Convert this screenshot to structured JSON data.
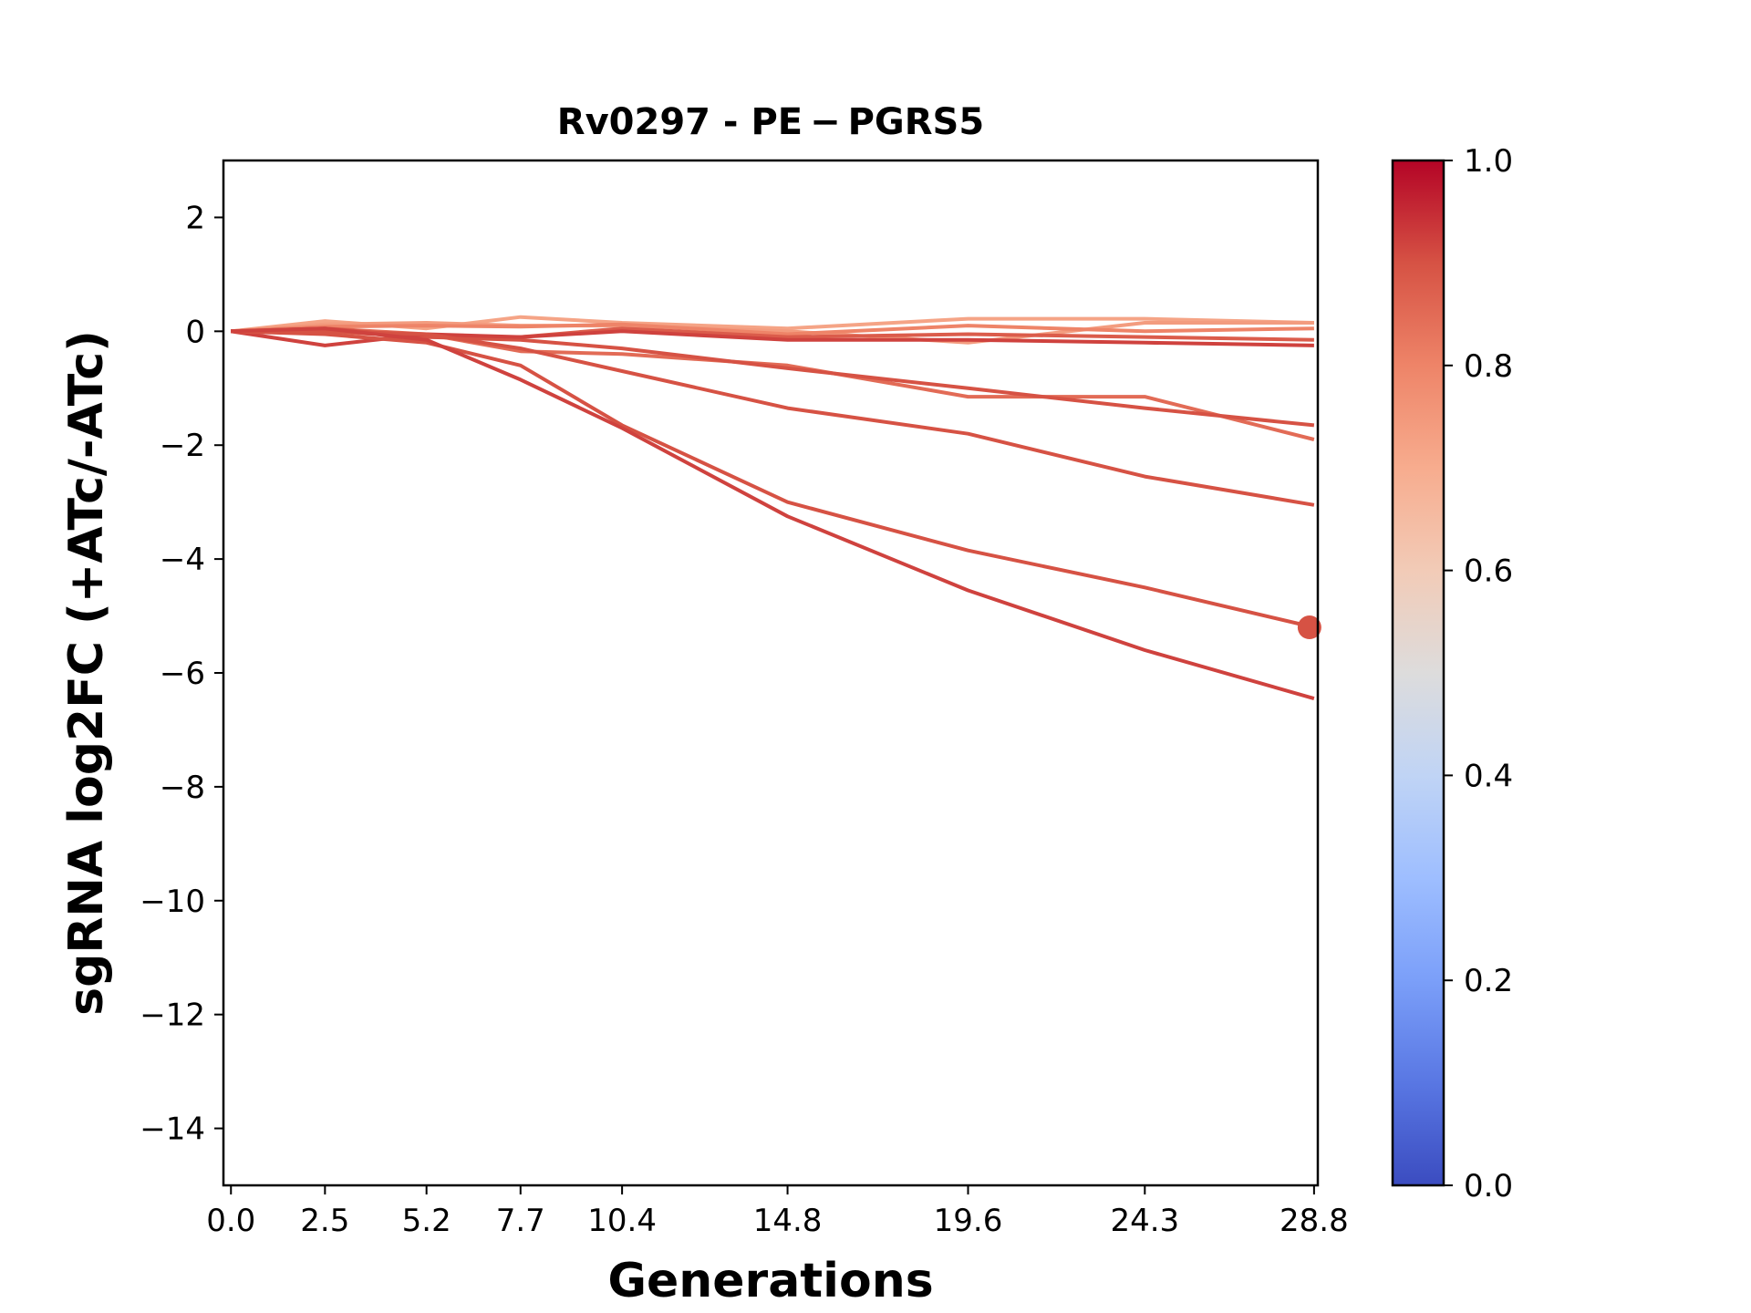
{
  "chart_data": {
    "type": "line",
    "title": "Rv0297 - PE − PGRS5",
    "xlabel": "Generations",
    "ylabel": "sgRNA log2FC (+ATc/-ATc)",
    "x": [
      0.0,
      2.5,
      5.2,
      7.7,
      10.4,
      14.8,
      19.6,
      24.3,
      28.8
    ],
    "x_tick_labels": [
      "0.0",
      "2.5",
      "5.2",
      "7.7",
      "10.4",
      "14.8",
      "19.6",
      "24.3",
      "28.8"
    ],
    "xlim": [
      -0.2,
      28.9
    ],
    "ylim": [
      -15,
      3
    ],
    "y_ticks": [
      2,
      0,
      -2,
      -4,
      -6,
      -8,
      -10,
      -12,
      -14
    ],
    "y_tick_labels": [
      "2",
      "0",
      "−2",
      "−4",
      "−6",
      "−8",
      "−10",
      "−12",
      "−14"
    ],
    "grid": false,
    "colorbar": {
      "colormap": "coolwarm",
      "range": [
        0.0,
        1.0
      ],
      "ticks": [
        0.0,
        0.2,
        0.4,
        0.6,
        0.8,
        1.0
      ],
      "tick_labels": [
        "0.0",
        "0.2",
        "0.4",
        "0.6",
        "0.8",
        "1.0"
      ]
    },
    "series": [
      {
        "values": [
          0.0,
          0.18,
          0.05,
          0.25,
          0.15,
          0.05,
          0.22,
          0.22,
          0.15
        ],
        "color_value": 0.72
      },
      {
        "values": [
          0.0,
          0.12,
          0.15,
          0.1,
          0.1,
          0.0,
          -0.2,
          0.15,
          0.15
        ],
        "color_value": 0.74
      },
      {
        "values": [
          0.0,
          0.08,
          0.1,
          0.08,
          0.12,
          -0.05,
          0.1,
          0.0,
          0.05
        ],
        "color_value": 0.8
      },
      {
        "values": [
          0.0,
          0.05,
          -0.05,
          -0.35,
          -0.4,
          -0.6,
          -1.15,
          -1.15,
          -1.9
        ],
        "color_value": 0.85
      },
      {
        "values": [
          0.0,
          0.0,
          -0.1,
          -0.1,
          0.05,
          -0.1,
          -0.05,
          -0.1,
          -0.15
        ],
        "color_value": 0.88
      },
      {
        "values": [
          0.0,
          0.05,
          -0.1,
          -0.15,
          -0.3,
          -0.65,
          -1.0,
          -1.35,
          -1.65
        ],
        "color_value": 0.9
      },
      {
        "values": [
          0.0,
          -0.25,
          -0.05,
          -0.1,
          0.0,
          -0.15,
          -0.15,
          -0.2,
          -0.25
        ],
        "color_value": 0.92
      },
      {
        "values": [
          0.0,
          0.0,
          -0.05,
          -0.3,
          -0.7,
          -1.35,
          -1.8,
          -2.55,
          -3.05
        ],
        "color_value": 0.9
      },
      {
        "values": [
          0.0,
          -0.05,
          -0.2,
          -0.6,
          -1.65,
          -3.0,
          -3.85,
          -4.5,
          -5.2
        ],
        "color_value": 0.9,
        "end_marker": true
      },
      {
        "values": [
          0.0,
          0.05,
          -0.15,
          -0.85,
          -1.7,
          -3.25,
          -4.55,
          -5.6,
          -6.45
        ],
        "color_value": 0.92
      }
    ]
  }
}
